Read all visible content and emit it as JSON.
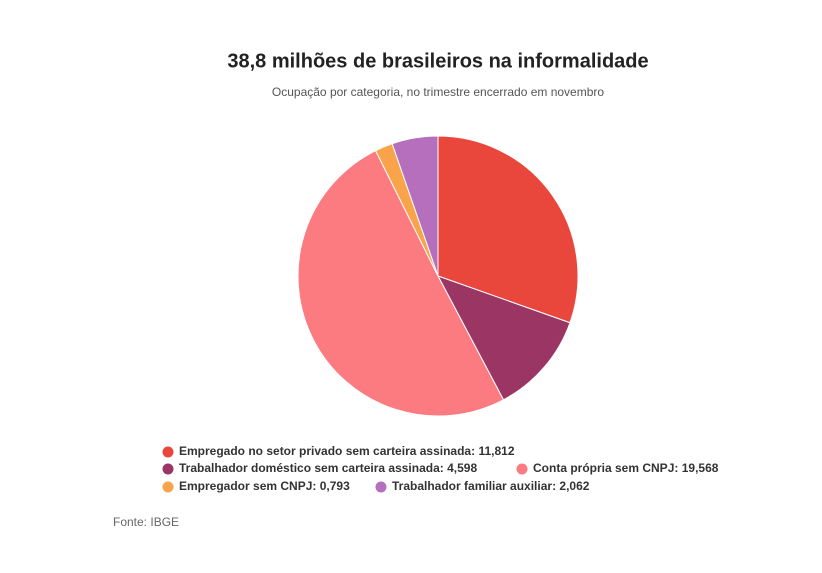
{
  "chart_data": {
    "type": "pie",
    "title": "38,8 milhões de brasileiros na informalidade",
    "subtitle": "Ocupação por categoria, no trimestre encerrado em novembro",
    "categories": [
      "Empregado no setor privado sem carteira assinada",
      "Trabalhador doméstico sem carteira assinada",
      "Conta própria sem CNPJ",
      "Empregador sem CNPJ",
      "Trabalhador familiar auxiliar"
    ],
    "values": [
      11.812,
      4.598,
      19.568,
      0.793,
      2.062
    ],
    "value_labels": [
      "11,812",
      "4,598",
      "19,568",
      "0,793",
      "2,062"
    ],
    "colors": [
      "#e9463c",
      "#9b3563",
      "#fc7b80",
      "#f9a34a",
      "#b56fbc"
    ],
    "source": "Fonte: IBGE"
  }
}
